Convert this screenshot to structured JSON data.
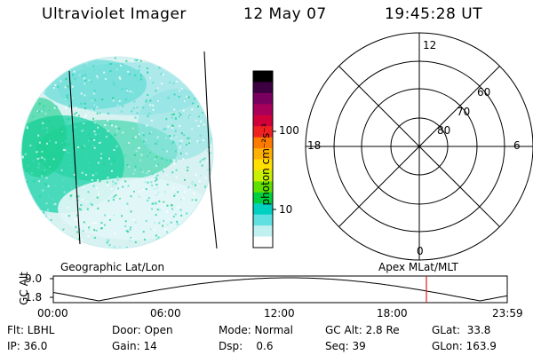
{
  "header": {
    "instrument": "Ultraviolet Imager",
    "date": "12 May 07",
    "time": "19:45:28 UT"
  },
  "colorbar": {
    "label": "photon cm⁻²s⁻¹",
    "ticks": [
      "100",
      "10"
    ],
    "colors": [
      "#000000",
      "#3d0040",
      "#7a0060",
      "#a8005a",
      "#d0003a",
      "#ef2020",
      "#ff7a00",
      "#ffb000",
      "#ffe000",
      "#c8f000",
      "#60e000",
      "#00d040",
      "#00d0c0",
      "#60e0e0",
      "#c0f0f0",
      "#ffffff"
    ]
  },
  "polar": {
    "lat_labels": [
      "60",
      "70",
      "80"
    ],
    "mlt_labels": {
      "top": "12",
      "left": "18",
      "right": "6",
      "bottom": "0"
    }
  },
  "timeline": {
    "y_title": "GC Alt",
    "y_ticks": [
      "9.0",
      "1.8"
    ],
    "left_caption": "Geographic Lat/Lon",
    "right_caption": "Apex  MLat/MLT",
    "x_ticks": [
      "00:00",
      "06:00",
      "12:00",
      "18:00",
      "23:59"
    ],
    "marker_color": "#e02020"
  },
  "footer": {
    "col1": [
      "Flt: LBHL",
      "IP: 36.0"
    ],
    "col2": [
      "Door: Open",
      "Gain: 14"
    ],
    "col3": [
      "Mode: Normal",
      "Dsp:    0.6"
    ],
    "col4": [
      "GC Alt: 2.8 Re",
      "Seq: 39"
    ],
    "col5": [
      "GLat:  33.8",
      "GLon: 163.9"
    ]
  }
}
